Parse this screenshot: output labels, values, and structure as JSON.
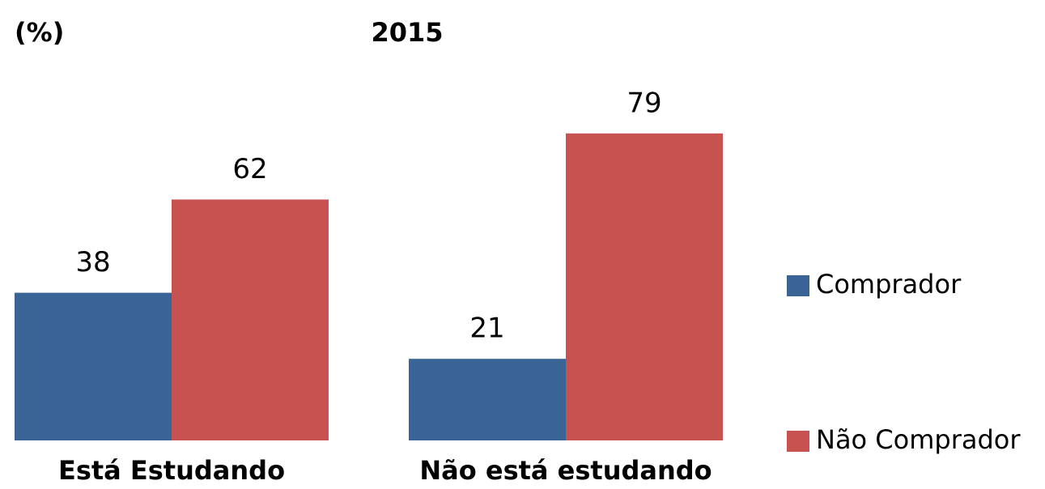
{
  "chart_data": {
    "type": "bar",
    "title": "2015",
    "subtitle": "(%)",
    "categories": [
      "Está Estudando",
      "Não está estudando"
    ],
    "series": [
      {
        "name": "Comprador",
        "color": "#3a6496",
        "values": [
          38,
          21
        ]
      },
      {
        "name": "Não Comprador",
        "color": "#c85250",
        "values": [
          62,
          79
        ]
      }
    ],
    "ylim": [
      0,
      100
    ],
    "legend": "right"
  }
}
